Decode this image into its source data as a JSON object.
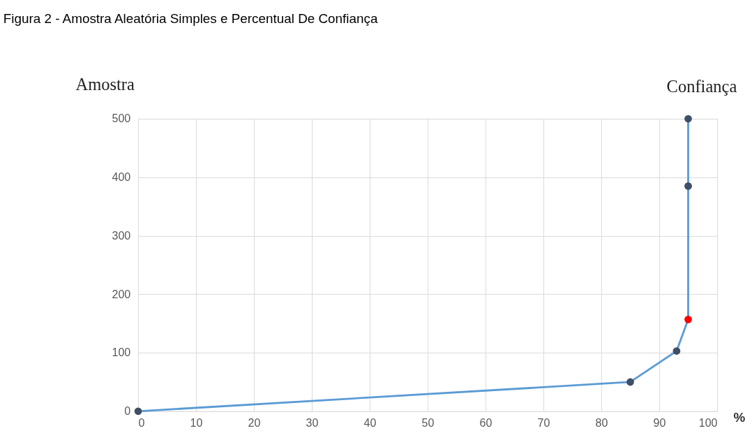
{
  "chart_data": {
    "type": "line",
    "title": "Figura 2 - Amostra Aleatória Simples e Percentual De Confiança",
    "ylabel": "Amostra",
    "xlabel": "%",
    "annotations": [
      "Confiança"
    ],
    "series": [
      {
        "color": "#5b9bd5",
        "colors": [
          "#3f4f66",
          "#3f4f66",
          "#3f4f66",
          "#ff0000",
          "#3f4f66",
          "#3f4f66"
        ],
        "x": [
          0,
          85,
          93,
          95,
          95,
          95
        ],
        "values": [
          0,
          50,
          103,
          157,
          385,
          500
        ]
      }
    ],
    "xlim": [
      0,
      100
    ],
    "xticks": [
      0,
      10,
      20,
      30,
      40,
      50,
      60,
      70,
      80,
      90,
      100
    ],
    "ylim": [
      0,
      500
    ],
    "yticks": [
      0,
      100,
      200,
      300,
      400,
      500
    ],
    "grid": true,
    "marker": "circle",
    "line_style": "solid",
    "legend": false
  }
}
